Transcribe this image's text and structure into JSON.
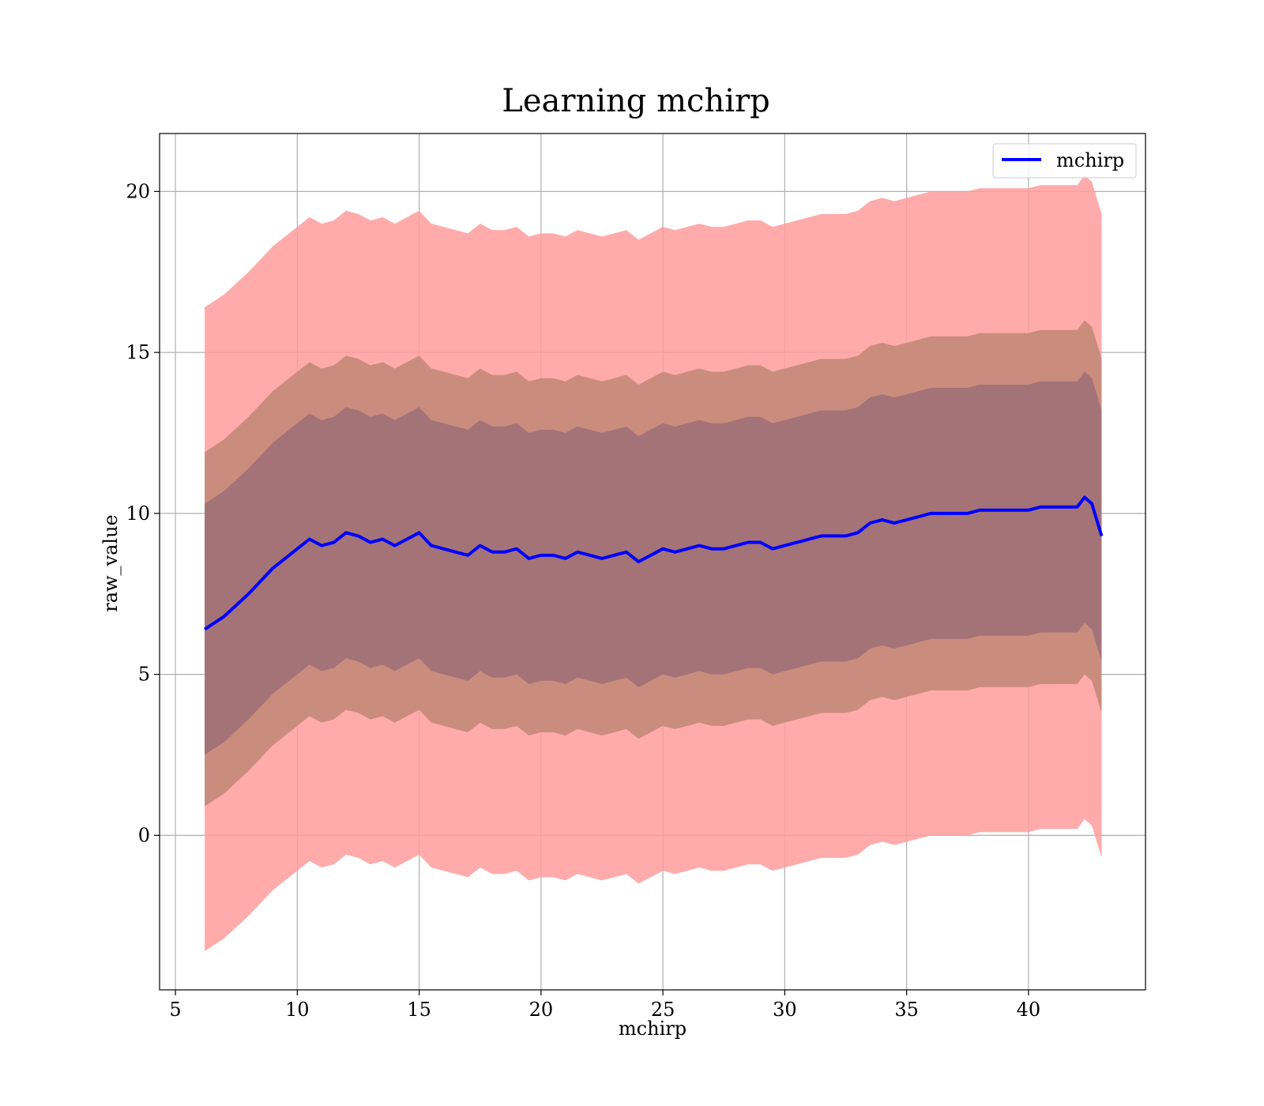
{
  "chart_data": {
    "type": "area",
    "title": "Learning mchirp",
    "xlabel": "mchirp",
    "ylabel": "raw_value",
    "xlim": [
      4.35,
      44.8
    ],
    "ylim": [
      -4.8,
      21.8
    ],
    "xticks": [
      5,
      10,
      15,
      20,
      25,
      30,
      35,
      40
    ],
    "yticks": [
      0,
      5,
      10,
      15,
      20
    ],
    "grid": true,
    "legend": {
      "placement": "upper right",
      "entries": [
        "mchirp"
      ]
    },
    "colors": {
      "line": "#0000ff",
      "band_outer": "#ff9c9c",
      "band_middle": "#c48a78",
      "band_inner": "#a07078"
    },
    "series": [
      {
        "name": "mchirp",
        "x": [
          6.2,
          7.0,
          8.0,
          9.0,
          10.0,
          10.5,
          11.0,
          11.5,
          12.0,
          12.5,
          13.0,
          13.5,
          14.0,
          14.5,
          15.0,
          15.5,
          16.0,
          16.5,
          17.0,
          17.5,
          18.0,
          18.5,
          19.0,
          19.5,
          20.0,
          20.5,
          21.0,
          21.5,
          22.0,
          22.5,
          23.0,
          23.5,
          24.0,
          24.5,
          25.0,
          25.5,
          26.0,
          26.5,
          27.0,
          27.5,
          28.0,
          28.5,
          29.0,
          29.5,
          30.0,
          30.5,
          31.0,
          31.5,
          32.0,
          32.5,
          33.0,
          33.5,
          34.0,
          34.5,
          35.0,
          35.5,
          36.0,
          36.5,
          37.0,
          37.5,
          38.0,
          38.5,
          39.0,
          39.5,
          40.0,
          40.5,
          41.0,
          41.5,
          42.0,
          42.3,
          42.6,
          43.0
        ],
        "mean": [
          6.4,
          6.8,
          7.5,
          8.3,
          8.9,
          9.2,
          9.0,
          9.1,
          9.4,
          9.3,
          9.1,
          9.2,
          9.0,
          9.2,
          9.4,
          9.0,
          8.9,
          8.8,
          8.7,
          9.0,
          8.8,
          8.8,
          8.9,
          8.6,
          8.7,
          8.7,
          8.6,
          8.8,
          8.7,
          8.6,
          8.7,
          8.8,
          8.5,
          8.7,
          8.9,
          8.8,
          8.9,
          9.0,
          8.9,
          8.9,
          9.0,
          9.1,
          9.1,
          8.9,
          9.0,
          9.1,
          9.2,
          9.3,
          9.3,
          9.3,
          9.4,
          9.7,
          9.8,
          9.7,
          9.8,
          9.9,
          10.0,
          10.0,
          10.0,
          10.0,
          10.1,
          10.1,
          10.1,
          10.1,
          10.1,
          10.2,
          10.2,
          10.2,
          10.2,
          10.5,
          10.3,
          9.3
        ],
        "band_halfwidths": [
          3.9,
          5.5,
          10.0
        ]
      }
    ]
  }
}
